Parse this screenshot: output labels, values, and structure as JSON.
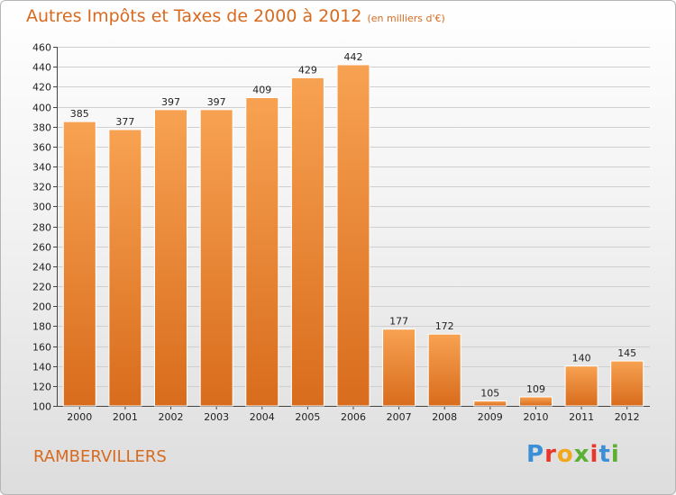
{
  "header": {
    "title": "Autres Impôts et Taxes de 2000 à 2012",
    "unit": "(en milliers d'€)"
  },
  "footer": {
    "place": "RAMBERVILLERS",
    "brand": "Proxiti"
  },
  "colors": {
    "accent": "#d86a1f",
    "bar_light": "#f7a252",
    "bar_dark": "#d86c1c",
    "brand_letters": [
      "#3b8fd6",
      "#e8372a",
      "#f2a81d",
      "#5bb031",
      "#e8372a",
      "#3b8fd6",
      "#5bb031"
    ]
  },
  "chart_data": {
    "type": "bar",
    "title": "Autres Impôts et Taxes de 2000 à 2012",
    "subtitle": "(en milliers d'€)",
    "categories": [
      "2000",
      "2001",
      "2002",
      "2003",
      "2004",
      "2005",
      "2006",
      "2007",
      "2008",
      "2009",
      "2010",
      "2011",
      "2012"
    ],
    "values": [
      385,
      377,
      397,
      397,
      409,
      429,
      442,
      177,
      172,
      105,
      109,
      140,
      145
    ],
    "ylim": [
      100,
      460
    ],
    "yticks": [
      100,
      120,
      140,
      160,
      180,
      200,
      220,
      240,
      260,
      280,
      300,
      320,
      340,
      360,
      380,
      400,
      420,
      440,
      460
    ],
    "xlabel": "",
    "ylabel": "",
    "grid": "horizontal",
    "legend": "none",
    "data_labels": true
  }
}
